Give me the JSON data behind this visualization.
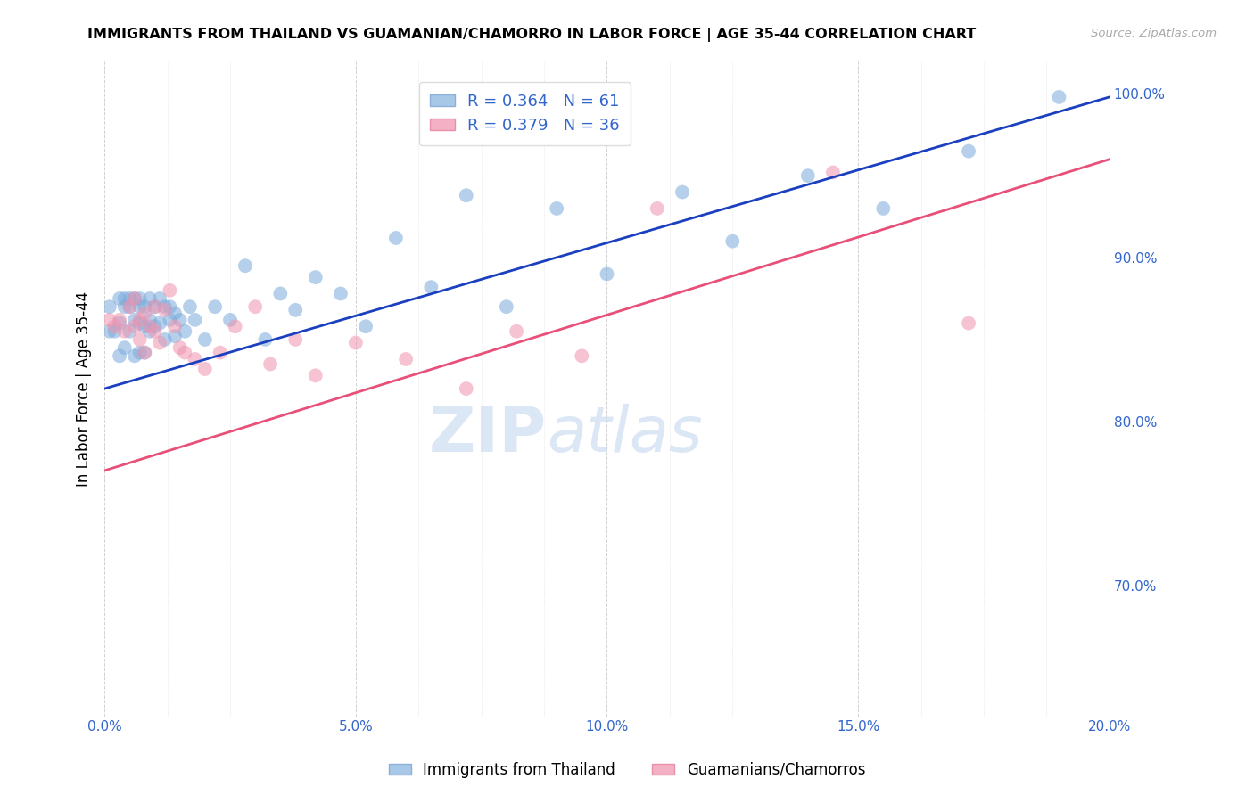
{
  "title": "IMMIGRANTS FROM THAILAND VS GUAMANIAN/CHAMORRO IN LABOR FORCE | AGE 35-44 CORRELATION CHART",
  "source": "Source: ZipAtlas.com",
  "ylabel": "In Labor Force | Age 35-44",
  "xlim": [
    0.0,
    0.2
  ],
  "ylim": [
    0.62,
    1.02
  ],
  "ytick_labels": [
    "70.0%",
    "80.0%",
    "90.0%",
    "100.0%"
  ],
  "ytick_values": [
    0.7,
    0.8,
    0.9,
    1.0
  ],
  "thailand_color": "#7aabdc",
  "guam_color": "#f093ae",
  "trend_thailand_color": "#1a3fbf",
  "trend_guam_color": "#e8507a",
  "watermark_zip": "ZIP",
  "watermark_atlas": "atlas",
  "thailand_x": [
    0.001,
    0.001,
    0.002,
    0.003,
    0.003,
    0.003,
    0.004,
    0.004,
    0.004,
    0.005,
    0.005,
    0.005,
    0.006,
    0.006,
    0.006,
    0.007,
    0.007,
    0.007,
    0.007,
    0.008,
    0.008,
    0.008,
    0.009,
    0.009,
    0.009,
    0.01,
    0.01,
    0.011,
    0.011,
    0.012,
    0.012,
    0.013,
    0.013,
    0.014,
    0.014,
    0.015,
    0.016,
    0.017,
    0.018,
    0.02,
    0.022,
    0.025,
    0.028,
    0.032,
    0.035,
    0.038,
    0.042,
    0.047,
    0.052,
    0.058,
    0.065,
    0.072,
    0.08,
    0.09,
    0.1,
    0.115,
    0.125,
    0.14,
    0.155,
    0.172,
    0.19
  ],
  "thailand_y": [
    0.855,
    0.87,
    0.855,
    0.84,
    0.86,
    0.875,
    0.845,
    0.87,
    0.875,
    0.855,
    0.87,
    0.875,
    0.84,
    0.862,
    0.875,
    0.842,
    0.86,
    0.87,
    0.875,
    0.842,
    0.858,
    0.87,
    0.855,
    0.862,
    0.875,
    0.858,
    0.87,
    0.86,
    0.875,
    0.85,
    0.87,
    0.862,
    0.87,
    0.852,
    0.866,
    0.862,
    0.855,
    0.87,
    0.862,
    0.85,
    0.87,
    0.862,
    0.895,
    0.85,
    0.878,
    0.868,
    0.888,
    0.878,
    0.858,
    0.912,
    0.882,
    0.938,
    0.87,
    0.93,
    0.89,
    0.94,
    0.91,
    0.95,
    0.93,
    0.965,
    0.998
  ],
  "guam_x": [
    0.001,
    0.002,
    0.003,
    0.004,
    0.005,
    0.006,
    0.006,
    0.007,
    0.007,
    0.008,
    0.008,
    0.009,
    0.01,
    0.01,
    0.011,
    0.012,
    0.013,
    0.014,
    0.015,
    0.016,
    0.018,
    0.02,
    0.023,
    0.026,
    0.03,
    0.033,
    0.038,
    0.042,
    0.05,
    0.06,
    0.072,
    0.082,
    0.095,
    0.11,
    0.145,
    0.172
  ],
  "guam_y": [
    0.862,
    0.858,
    0.862,
    0.855,
    0.87,
    0.858,
    0.875,
    0.85,
    0.862,
    0.842,
    0.866,
    0.858,
    0.855,
    0.87,
    0.848,
    0.868,
    0.88,
    0.858,
    0.845,
    0.842,
    0.838,
    0.832,
    0.842,
    0.858,
    0.87,
    0.835,
    0.85,
    0.828,
    0.848,
    0.838,
    0.82,
    0.855,
    0.84,
    0.93,
    0.952,
    0.86
  ]
}
